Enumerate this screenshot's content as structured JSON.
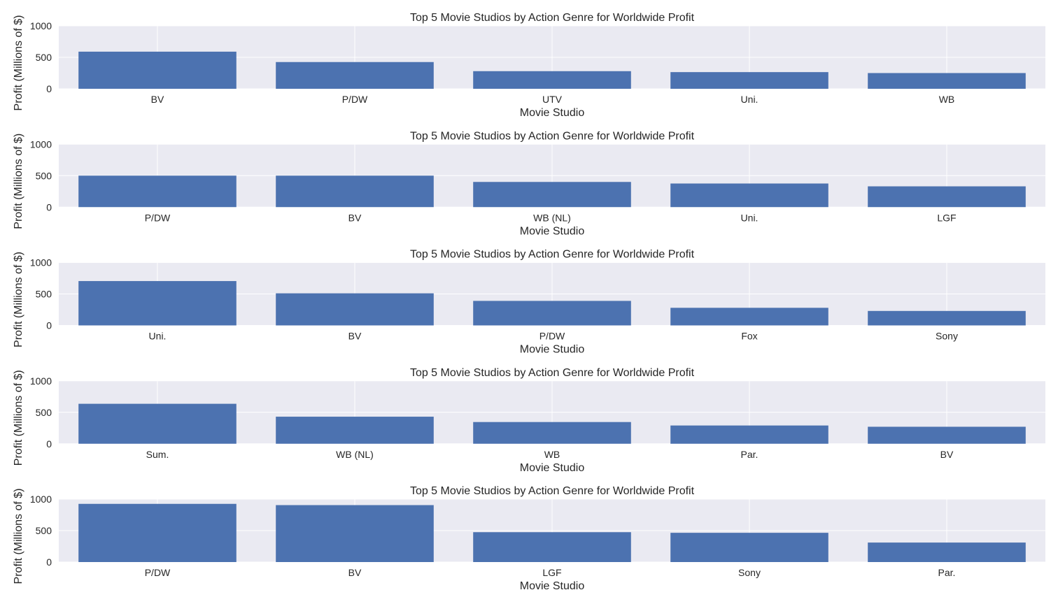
{
  "chart_data": [
    {
      "type": "bar",
      "title": "Top 5 Movie Studios by Action Genre for Worldwide Profit",
      "xlabel": "Movie Studio",
      "ylabel": "Profit (Millions of $)",
      "ylim": [
        0,
        1000
      ],
      "yticks": [
        "0",
        "500",
        "1000"
      ],
      "grid": true,
      "categories": [
        "BV",
        "P/DW",
        "UTV",
        "Uni.",
        "WB"
      ],
      "values": [
        590,
        425,
        280,
        265,
        250
      ]
    },
    {
      "type": "bar",
      "title": "Top 5 Movie Studios by Action Genre for Worldwide Profit",
      "xlabel": "Movie Studio",
      "ylabel": "Profit (Millions of $)",
      "ylim": [
        0,
        1000
      ],
      "yticks": [
        "0",
        "500",
        "1000"
      ],
      "grid": true,
      "categories": [
        "P/DW",
        "BV",
        "WB (NL)",
        "Uni.",
        "LGF"
      ],
      "values": [
        500,
        500,
        400,
        375,
        330
      ]
    },
    {
      "type": "bar",
      "title": "Top 5 Movie Studios by Action Genre for Worldwide Profit",
      "xlabel": "Movie Studio",
      "ylabel": "Profit (Millions of $)",
      "ylim": [
        0,
        1000
      ],
      "yticks": [
        "0",
        "500",
        "1000"
      ],
      "grid": true,
      "categories": [
        "Uni.",
        "BV",
        "P/DW",
        "Fox",
        "Sony"
      ],
      "values": [
        705,
        510,
        390,
        280,
        230
      ]
    },
    {
      "type": "bar",
      "title": "Top 5 Movie Studios by Action Genre for Worldwide Profit",
      "xlabel": "Movie Studio",
      "ylabel": "Profit (Millions of $)",
      "ylim": [
        0,
        1000
      ],
      "yticks": [
        "0",
        "500",
        "1000"
      ],
      "grid": true,
      "categories": [
        "Sum.",
        "WB (NL)",
        "WB",
        "Par.",
        "BV"
      ],
      "values": [
        635,
        430,
        345,
        290,
        270
      ]
    },
    {
      "type": "bar",
      "title": "Top 5 Movie Studios by Action Genre for Worldwide Profit",
      "xlabel": "Movie Studio",
      "ylabel": "Profit (Millions of $)",
      "ylim": [
        0,
        1000
      ],
      "yticks": [
        "0",
        "500",
        "1000"
      ],
      "grid": true,
      "categories": [
        "P/DW",
        "BV",
        "LGF",
        "Sony",
        "Par."
      ],
      "values": [
        925,
        905,
        475,
        465,
        310
      ]
    }
  ],
  "colors": {
    "bar": "#4c72b0",
    "plot_background": "#eaeaf2",
    "grid": "#ffffff",
    "text": "#262626"
  }
}
